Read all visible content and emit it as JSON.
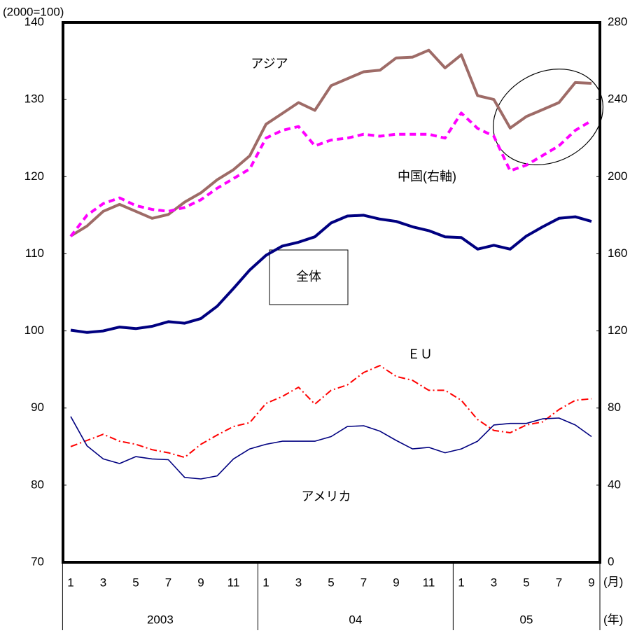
{
  "chart_data": {
    "type": "line",
    "y_unit_label": "(2000=100)",
    "x_month_unit": "(月)",
    "x_year_unit": "(年)",
    "categories": [
      "1",
      null,
      "3",
      null,
      "5",
      null,
      "7",
      null,
      "9",
      null,
      "11",
      null,
      "1",
      null,
      "3",
      null,
      "5",
      null,
      "7",
      null,
      "9",
      null,
      "11",
      null,
      "1",
      null,
      "3",
      null,
      "5",
      null,
      "7",
      null,
      "9"
    ],
    "years": [
      "2003",
      "04",
      "05"
    ],
    "ylim": [
      70,
      140
    ],
    "yticks": [
      70,
      80,
      90,
      100,
      110,
      120,
      130,
      140
    ],
    "y2lim": [
      0,
      280
    ],
    "y2ticks": [
      0,
      40,
      80,
      120,
      160,
      200,
      240,
      280
    ],
    "grid": false,
    "series": [
      {
        "name": "アジア",
        "color": "#9e6b67",
        "values": [
          112.3,
          113.6,
          115.5,
          116.4,
          115.5,
          114.6,
          115.1,
          116.7,
          117.9,
          119.6,
          120.9,
          122.7,
          126.8,
          128.2,
          129.6,
          128.6,
          131.8,
          132.7,
          133.6,
          133.8,
          135.4,
          135.5,
          136.4,
          134.1,
          135.8,
          130.5,
          130.0,
          126.3,
          127.8,
          128.7,
          129.6,
          132.2,
          132.1
        ]
      },
      {
        "name": "中国(右軸)",
        "color": "#ff00ff",
        "axis": "y2",
        "values": [
          169,
          180,
          186,
          189,
          185,
          183,
          182,
          184,
          188,
          194,
          199,
          204,
          220,
          224,
          226,
          216,
          219,
          220,
          222,
          221,
          222,
          222,
          222,
          220,
          233,
          225,
          221,
          203,
          206,
          211,
          216,
          224,
          229
        ]
      },
      {
        "name": "全体",
        "color": "#000080",
        "values": [
          100.1,
          99.8,
          100.0,
          100.5,
          100.3,
          100.6,
          101.2,
          101.0,
          101.6,
          103.2,
          105.5,
          107.9,
          109.8,
          111.0,
          111.5,
          112.2,
          114.0,
          114.9,
          115.0,
          114.5,
          114.2,
          113.5,
          113.0,
          112.2,
          112.1,
          110.6,
          111.1,
          110.6,
          112.3,
          113.5,
          114.6,
          114.8,
          114.2
        ]
      },
      {
        "name": "ＥＵ",
        "color": "#ff0000",
        "values": [
          85.0,
          85.8,
          86.6,
          85.7,
          85.3,
          84.6,
          84.2,
          83.6,
          85.3,
          86.5,
          87.6,
          88.1,
          90.6,
          91.5,
          92.7,
          90.5,
          92.3,
          93.0,
          94.6,
          95.5,
          94.1,
          93.6,
          92.3,
          92.3,
          91.0,
          88.5,
          87.1,
          86.8,
          87.8,
          88.2,
          89.8,
          91.0,
          91.2
        ]
      },
      {
        "name": "アメリカ",
        "color": "#000080",
        "values": [
          88.9,
          85.1,
          83.4,
          82.8,
          83.7,
          83.4,
          83.3,
          81.0,
          80.8,
          81.2,
          83.4,
          84.7,
          85.3,
          85.7,
          85.7,
          85.7,
          86.3,
          87.6,
          87.7,
          87.0,
          85.8,
          84.7,
          84.9,
          84.2,
          84.7,
          85.7,
          87.8,
          88.0,
          88.0,
          88.6,
          88.7,
          87.8,
          86.3
        ]
      }
    ]
  }
}
